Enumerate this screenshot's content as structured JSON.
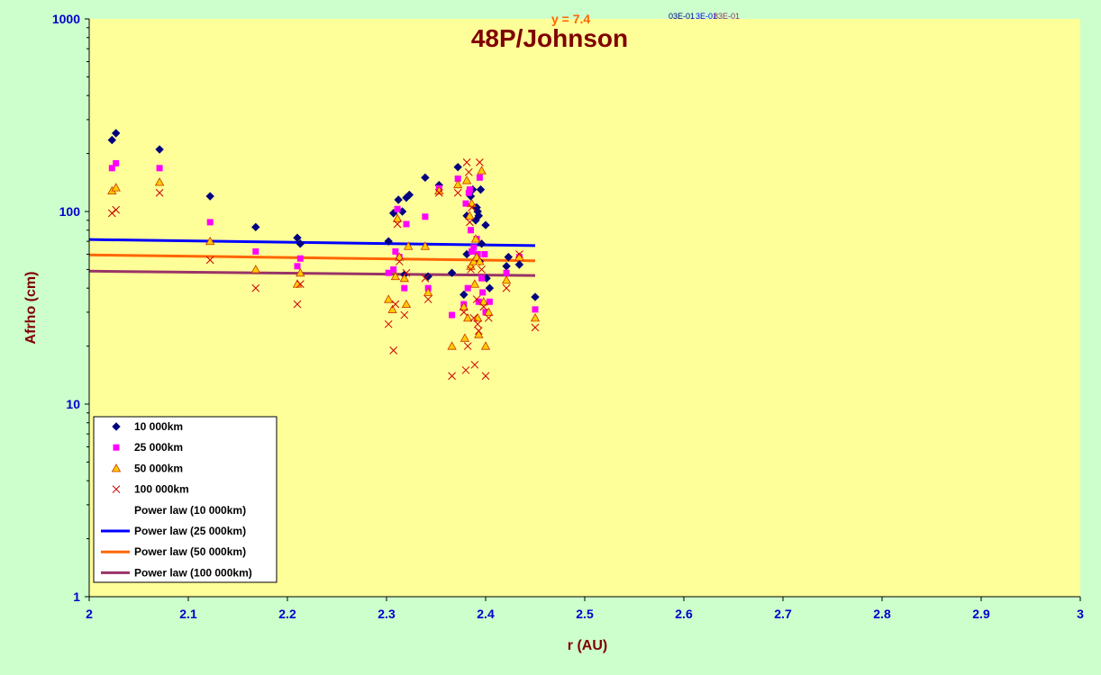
{
  "chart_data": {
    "type": "scatter",
    "title": "48P/Johnson",
    "xlabel": "r (AU)",
    "ylabel": "Afrho (cm)",
    "xlim": [
      2,
      3
    ],
    "ylim": [
      1,
      1000
    ],
    "yscale": "log",
    "x_ticks": [
      "2",
      "2.1",
      "2.2",
      "2.3",
      "2.4",
      "2.5",
      "2.6",
      "2.7",
      "2.8",
      "2.9",
      "3"
    ],
    "y_ticks": [
      "1",
      "10",
      "100",
      "1000"
    ],
    "legend_position": "bottom-left",
    "trendline_equations": [
      "y = 7.4",
      "03E-01",
      "3E-01",
      "83E-01"
    ],
    "series": [
      {
        "name": "10 000km",
        "marker": "diamond",
        "color": "#000080",
        "points": [
          [
            2.023,
            235
          ],
          [
            2.027,
            255
          ],
          [
            2.071,
            210
          ],
          [
            2.122,
            120
          ],
          [
            2.168,
            83
          ],
          [
            2.21,
            73
          ],
          [
            2.213,
            68
          ],
          [
            2.302,
            70
          ],
          [
            2.307,
            98
          ],
          [
            2.312,
            115
          ],
          [
            2.316,
            100
          ],
          [
            2.318,
            47
          ],
          [
            2.32,
            118
          ],
          [
            2.323,
            122
          ],
          [
            2.339,
            150
          ],
          [
            2.342,
            46
          ],
          [
            2.353,
            137
          ],
          [
            2.366,
            48
          ],
          [
            2.372,
            170
          ],
          [
            2.378,
            37
          ],
          [
            2.381,
            95
          ],
          [
            2.381,
            60
          ],
          [
            2.385,
            120
          ],
          [
            2.387,
            130
          ],
          [
            2.39,
            90
          ],
          [
            2.391,
            105
          ],
          [
            2.392,
            100
          ],
          [
            2.393,
            95
          ],
          [
            2.394,
            55
          ],
          [
            2.395,
            130
          ],
          [
            2.396,
            68
          ],
          [
            2.4,
            85
          ],
          [
            2.401,
            45
          ],
          [
            2.404,
            40
          ],
          [
            2.421,
            52
          ],
          [
            2.423,
            58
          ],
          [
            2.434,
            53
          ],
          [
            2.45,
            36
          ]
        ]
      },
      {
        "name": "25 000km",
        "marker": "square",
        "color": "#ff00ff",
        "points": [
          [
            2.023,
            168
          ],
          [
            2.027,
            178
          ],
          [
            2.071,
            168
          ],
          [
            2.122,
            88
          ],
          [
            2.168,
            62
          ],
          [
            2.21,
            52
          ],
          [
            2.213,
            57
          ],
          [
            2.302,
            48
          ],
          [
            2.307,
            50
          ],
          [
            2.309,
            62
          ],
          [
            2.311,
            103
          ],
          [
            2.313,
            58
          ],
          [
            2.318,
            40
          ],
          [
            2.32,
            86
          ],
          [
            2.339,
            94
          ],
          [
            2.342,
            40
          ],
          [
            2.353,
            132
          ],
          [
            2.366,
            29
          ],
          [
            2.372,
            148
          ],
          [
            2.378,
            33
          ],
          [
            2.38,
            110
          ],
          [
            2.382,
            40
          ],
          [
            2.383,
            125
          ],
          [
            2.384,
            130
          ],
          [
            2.385,
            80
          ],
          [
            2.386,
            62
          ],
          [
            2.388,
            65
          ],
          [
            2.391,
            72
          ],
          [
            2.392,
            60
          ],
          [
            2.393,
            34
          ],
          [
            2.394,
            150
          ],
          [
            2.396,
            45
          ],
          [
            2.397,
            38
          ],
          [
            2.399,
            60
          ],
          [
            2.4,
            30
          ],
          [
            2.404,
            34
          ],
          [
            2.421,
            48
          ],
          [
            2.434,
            58
          ],
          [
            2.45,
            31
          ]
        ]
      },
      {
        "name": "50 000km",
        "marker": "triangle",
        "color": "#ff9900",
        "points": [
          [
            2.023,
            128
          ],
          [
            2.027,
            133
          ],
          [
            2.071,
            142
          ],
          [
            2.122,
            70
          ],
          [
            2.168,
            50
          ],
          [
            2.21,
            42
          ],
          [
            2.213,
            48
          ],
          [
            2.302,
            35
          ],
          [
            2.306,
            31
          ],
          [
            2.309,
            46
          ],
          [
            2.311,
            92
          ],
          [
            2.313,
            58
          ],
          [
            2.318,
            45
          ],
          [
            2.32,
            33
          ],
          [
            2.322,
            66
          ],
          [
            2.339,
            66
          ],
          [
            2.342,
            38
          ],
          [
            2.353,
            128
          ],
          [
            2.366,
            20
          ],
          [
            2.372,
            138
          ],
          [
            2.378,
            32
          ],
          [
            2.379,
            22
          ],
          [
            2.381,
            145
          ],
          [
            2.382,
            28
          ],
          [
            2.384,
            95
          ],
          [
            2.385,
            52
          ],
          [
            2.386,
            110
          ],
          [
            2.388,
            55
          ],
          [
            2.389,
            42
          ],
          [
            2.39,
            72
          ],
          [
            2.391,
            58
          ],
          [
            2.392,
            28
          ],
          [
            2.393,
            23
          ],
          [
            2.394,
            55
          ],
          [
            2.396,
            163
          ],
          [
            2.398,
            34
          ],
          [
            2.4,
            20
          ],
          [
            2.403,
            30
          ],
          [
            2.421,
            44
          ],
          [
            2.434,
            58
          ],
          [
            2.45,
            28
          ]
        ]
      },
      {
        "name": "100 000km",
        "marker": "x",
        "color": "#cc0000",
        "points": [
          [
            2.023,
            98
          ],
          [
            2.027,
            102
          ],
          [
            2.071,
            125
          ],
          [
            2.122,
            56
          ],
          [
            2.168,
            40
          ],
          [
            2.21,
            33
          ],
          [
            2.213,
            42
          ],
          [
            2.302,
            26
          ],
          [
            2.307,
            19
          ],
          [
            2.309,
            33
          ],
          [
            2.311,
            86
          ],
          [
            2.313,
            55
          ],
          [
            2.318,
            29
          ],
          [
            2.32,
            48
          ],
          [
            2.339,
            45
          ],
          [
            2.342,
            35
          ],
          [
            2.353,
            125
          ],
          [
            2.366,
            14
          ],
          [
            2.372,
            125
          ],
          [
            2.378,
            30
          ],
          [
            2.38,
            15
          ],
          [
            2.381,
            180
          ],
          [
            2.382,
            20
          ],
          [
            2.383,
            160
          ],
          [
            2.384,
            88
          ],
          [
            2.385,
            50
          ],
          [
            2.386,
            105
          ],
          [
            2.388,
            28
          ],
          [
            2.389,
            16
          ],
          [
            2.391,
            35
          ],
          [
            2.392,
            26
          ],
          [
            2.393,
            24
          ],
          [
            2.394,
            180
          ],
          [
            2.396,
            50
          ],
          [
            2.398,
            32
          ],
          [
            2.4,
            14
          ],
          [
            2.403,
            28
          ],
          [
            2.421,
            40
          ],
          [
            2.434,
            60
          ],
          [
            2.45,
            25
          ]
        ]
      },
      {
        "name": "Power law (10 000km)",
        "marker": "line",
        "color": "#000080",
        "width": 2,
        "line_points": [
          [
            2.0,
            71.5
          ],
          [
            2.45,
            66.5
          ]
        ]
      },
      {
        "name": "Power law (25 000km)",
        "marker": "line",
        "color": "#0000ff",
        "width": 3,
        "line_points": [
          [
            2.0,
            71.5
          ],
          [
            2.45,
            66.5
          ]
        ]
      },
      {
        "name": "Power law (50 000km)",
        "marker": "line",
        "color": "#ff6600",
        "width": 3,
        "line_points": [
          [
            2.0,
            59.5
          ],
          [
            2.45,
            55.5
          ]
        ]
      },
      {
        "name": "Power law (100 000km)",
        "marker": "line",
        "color": "#993366",
        "width": 3,
        "line_points": [
          [
            2.0,
            49
          ],
          [
            2.45,
            46.5
          ]
        ]
      }
    ]
  },
  "colors": {
    "page_background": "#ccffcc",
    "plot_background": "#ffff99",
    "tick_label": "#0000cc",
    "axis_title": "#800000"
  }
}
